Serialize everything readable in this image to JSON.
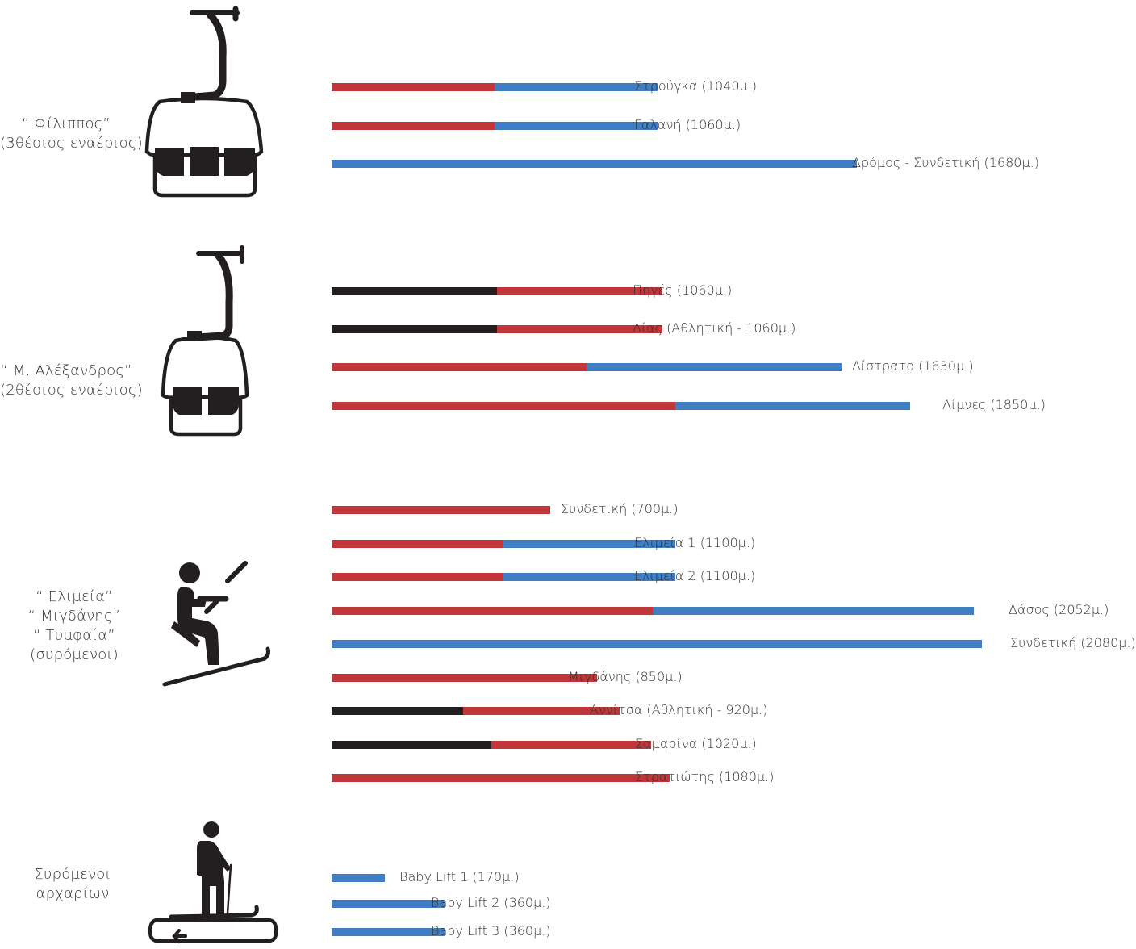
{
  "colors": {
    "red": "#c0363a",
    "blue": "#3f7ec4",
    "black": "#231f20"
  },
  "groups": [
    {
      "label_lines": [
        "“ Φίλιππος”",
        "(3θέσιος εναέριος)"
      ],
      "icon": "chairlift-3-seat-icon",
      "lifts": [
        {
          "label": "Στρούγκα (1040μ.)",
          "segments": [
            {
              "color": "red",
              "length": 520
            },
            {
              "color": "blue",
              "length": 520
            }
          ]
        },
        {
          "label": "Γαλανή (1060μ.)",
          "segments": [
            {
              "color": "red",
              "length": 520
            },
            {
              "color": "blue",
              "length": 520
            }
          ]
        },
        {
          "label": "Δρόμος - Συνδετική (1680μ.)",
          "segments": [
            {
              "color": "blue",
              "length": 1680
            }
          ]
        }
      ]
    },
    {
      "label_lines": [
        "“ Μ. Αλέξανδρος”",
        "(2θέσιος εναέριος)"
      ],
      "icon": "chairlift-2-seat-icon",
      "lifts": [
        {
          "label": "Πηγές (1060μ.)",
          "segments": [
            {
              "color": "black",
              "length": 530
            },
            {
              "color": "red",
              "length": 530
            }
          ]
        },
        {
          "label": "Δίας (Αθλητική - 1060μ.)",
          "segments": [
            {
              "color": "black",
              "length": 530
            },
            {
              "color": "red",
              "length": 530
            }
          ]
        },
        {
          "label": "Δίστρατο (1630μ.)",
          "segments": [
            {
              "color": "red",
              "length": 815
            },
            {
              "color": "blue",
              "length": 815
            }
          ]
        },
        {
          "label": "Λίμνες (1850μ.)",
          "segments": [
            {
              "color": "red",
              "length": 1100
            },
            {
              "color": "blue",
              "length": 750
            }
          ]
        }
      ]
    },
    {
      "label_lines": [
        "“ Ελιμεία”",
        "“ Μιγδάνης”",
        "“ Τυμφαία”",
        "(συρόμενοι)"
      ],
      "icon": "surface-lift-skier-icon",
      "lifts": [
        {
          "label": "Συνδετική (700μ.)",
          "segments": [
            {
              "color": "red",
              "length": 700
            }
          ]
        },
        {
          "label": "Ελιμεία 1 (1100μ.)",
          "segments": [
            {
              "color": "red",
              "length": 550
            },
            {
              "color": "blue",
              "length": 550
            }
          ]
        },
        {
          "label": "Ελιμεία 2 (1100μ.)",
          "segments": [
            {
              "color": "red",
              "length": 550
            },
            {
              "color": "blue",
              "length": 550
            }
          ]
        },
        {
          "label": "Δάσος (2052μ.)",
          "segments": [
            {
              "color": "red",
              "length": 1026
            },
            {
              "color": "blue",
              "length": 1026
            }
          ]
        },
        {
          "label": "Συνδετική (2080μ.)",
          "segments": [
            {
              "color": "blue",
              "length": 2080
            }
          ]
        },
        {
          "label": "Μιγδάνης (850μ.)",
          "segments": [
            {
              "color": "red",
              "length": 850
            }
          ]
        },
        {
          "label": "Αννίτσα (Αθλητική - 920μ.)",
          "segments": [
            {
              "color": "black",
              "length": 420
            },
            {
              "color": "red",
              "length": 500
            }
          ]
        },
        {
          "label": "Σαμαρίνα (1020μ.)",
          "segments": [
            {
              "color": "black",
              "length": 510
            },
            {
              "color": "red",
              "length": 510
            }
          ]
        },
        {
          "label": "Στρατιώτης (1080μ.)",
          "segments": [
            {
              "color": "red",
              "length": 1080
            }
          ]
        }
      ]
    },
    {
      "label_lines": [
        "Συρόμενοι",
        "αρχαρίων"
      ],
      "icon": "beginner-conveyor-skier-icon",
      "lifts": [
        {
          "label": "Baby Lift 1 (170μ.)",
          "segments": [
            {
              "color": "blue",
              "length": 170
            }
          ]
        },
        {
          "label": "Baby Lift 2 (360μ.)",
          "segments": [
            {
              "color": "blue",
              "length": 360
            }
          ]
        },
        {
          "label": "Baby Lift 3 (360μ.)",
          "segments": [
            {
              "color": "blue",
              "length": 360
            }
          ]
        }
      ]
    }
  ]
}
